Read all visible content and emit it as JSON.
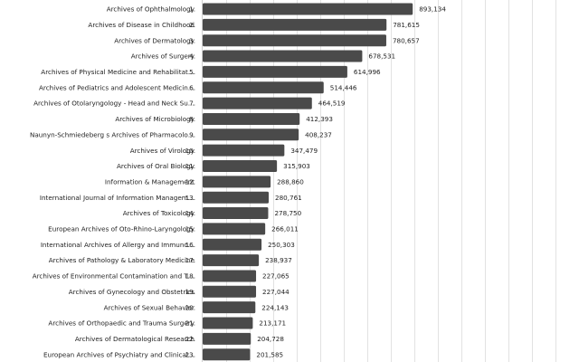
{
  "chart_data": {
    "type": "bar",
    "orientation": "horizontal",
    "title": "",
    "xlabel": "",
    "ylabel": "",
    "grid": true,
    "xlim": [
      0,
      1600000
    ],
    "colors": {
      "bar": "#4a4a4a",
      "grid": "#e2e2e2",
      "text": "#222222"
    },
    "categories": [
      "Archives of Ophthalmology",
      "Archives of Disease in Childhood",
      "Archives of Dermatology",
      "Archives of Surgery",
      "Archives of Physical Medicine and Rehabilitat…",
      "Archives of Pediatrics and Adolescent Medicin…",
      "Archives of Otolaryngology - Head and Neck Su…",
      "Archives of Microbiology",
      "Naunyn-Schmiedeberg s Archives of Pharmacolo…",
      "Archives of Virology",
      "Archives of Oral Biology",
      "Information & Management",
      "International Journal of Information Managem…",
      "Archives of Toxicology",
      "European Archives of Oto-Rhino-Laryngology",
      "International Archives of Allergy and Immuno…",
      "Archives of Pathology & Laboratory Medicine",
      "Archives of Environmental Contamination and T…",
      "Archives of Gynecology and Obstetrics",
      "Archives of Sexual Behavior",
      "Archives of Orthopaedic and Trauma Surgery",
      "Archives of Dermatological Research",
      "European Archives of Psychiatry and Clinical…"
    ],
    "ranks": [
      "1.",
      "2.",
      "3.",
      "4.",
      "5.",
      "6.",
      "7.",
      "8.",
      "9.",
      "10.",
      "11.",
      "12.",
      "13.",
      "14.",
      "15.",
      "16.",
      "17.",
      "18.",
      "19.",
      "20.",
      "21.",
      "22.",
      "23."
    ],
    "values": [
      893134,
      781615,
      780657,
      678531,
      614996,
      514446,
      464519,
      412393,
      408237,
      347479,
      315903,
      288860,
      280761,
      278750,
      266011,
      250303,
      238937,
      227065,
      227044,
      224143,
      213171,
      204728,
      201585
    ],
    "value_labels": [
      "893,134",
      "781,615",
      "780,657",
      "678,531",
      "614,996",
      "514,446",
      "464,519",
      "412,393",
      "408,237",
      "347,479",
      "315,903",
      "288,860",
      "280,761",
      "278,750",
      "266,011",
      "250,303",
      "238,937",
      "227,065",
      "227,044",
      "224,143",
      "213,171",
      "204,728",
      "201,585"
    ]
  }
}
